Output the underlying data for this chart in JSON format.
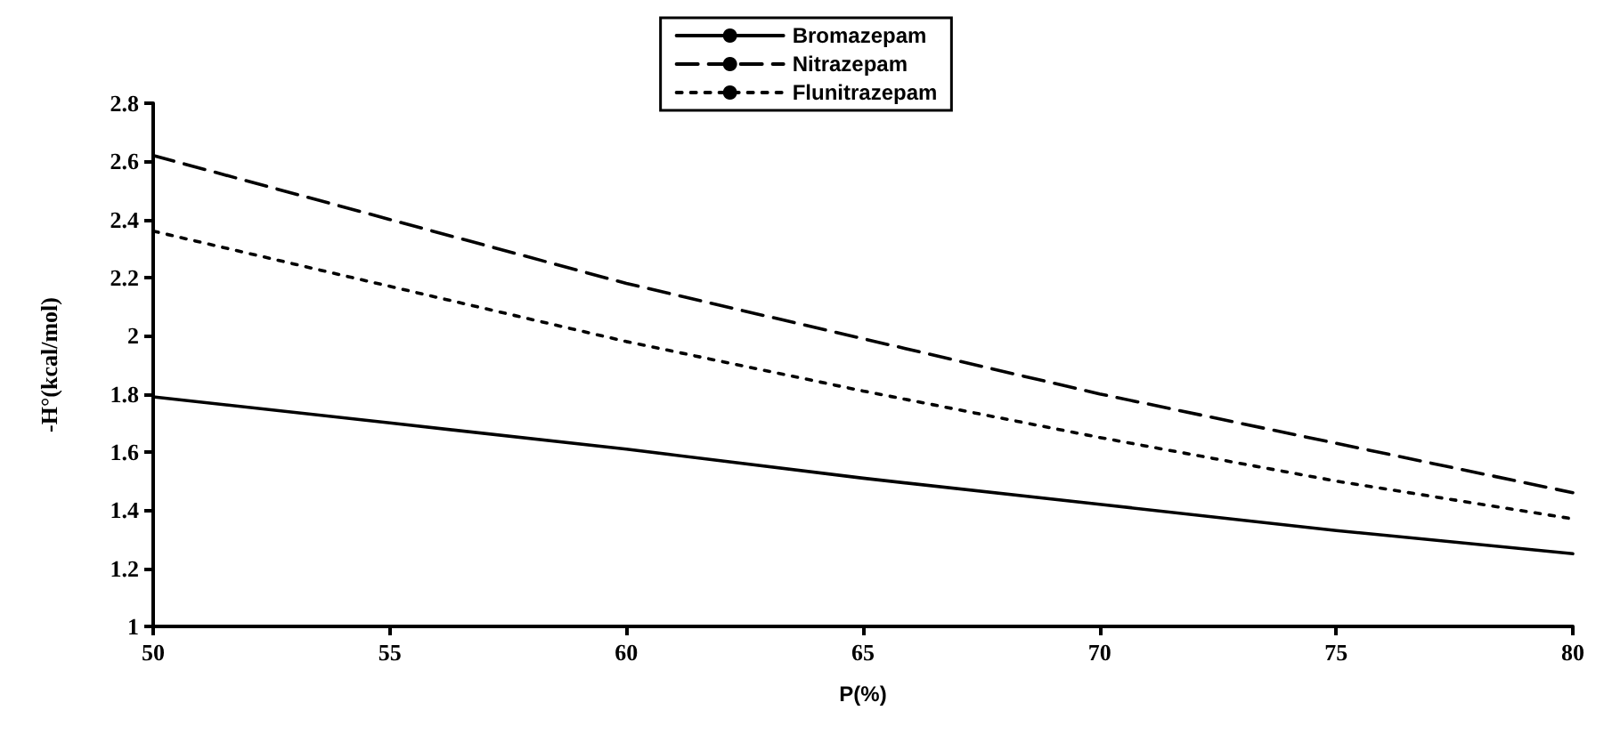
{
  "chart_data": {
    "type": "line",
    "xlabel": "P(%)",
    "ylabel": "-H°(kcal/mol)",
    "x": [
      50,
      55,
      60,
      65,
      70,
      75,
      80
    ],
    "series": [
      {
        "name": "Bromazepam",
        "color": "#000000",
        "line_style": "solid",
        "values": [
          1.79,
          1.7,
          1.61,
          1.51,
          1.42,
          1.33,
          1.25
        ]
      },
      {
        "name": "Nitrazepam",
        "color": "#000000",
        "line_style": "dashed",
        "values": [
          2.62,
          2.4,
          2.18,
          1.99,
          1.8,
          1.63,
          1.46
        ]
      },
      {
        "name": "Flunitrazepam",
        "color": "#000000",
        "line_style": "dotted",
        "values": [
          2.36,
          2.17,
          1.98,
          1.81,
          1.65,
          1.5,
          1.37
        ]
      }
    ],
    "xlim": [
      50,
      80
    ],
    "xticks": [
      50,
      55,
      60,
      65,
      70,
      75,
      80
    ],
    "ylim": [
      1,
      2.8
    ],
    "yticks": [
      1,
      1.2,
      1.4,
      1.6,
      1.8,
      2,
      2.2,
      2.4,
      2.6,
      2.8
    ],
    "grid": false,
    "legend": "top",
    "marker": "none"
  }
}
